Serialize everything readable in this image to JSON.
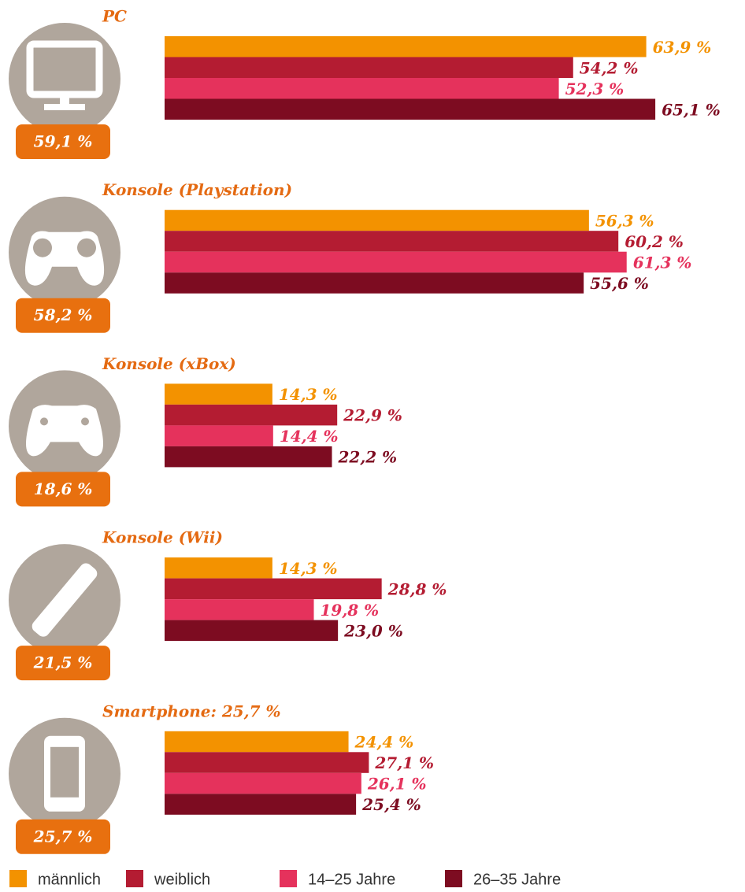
{
  "chart_data": {
    "type": "bar",
    "categories": [
      "PC",
      "Konsole (Playstation)",
      "Konsole (xBox)",
      "Konsole (Wii)",
      "Smartphone: 25,7 %"
    ],
    "totals": [
      59.1,
      58.2,
      18.6,
      21.5,
      25.7
    ],
    "total_labels": [
      "59,1 %",
      "58,2 %",
      "18,6 %",
      "21,5 %",
      "25,7 %"
    ],
    "total_color": "#e8700f",
    "xlim": [
      0,
      77
    ],
    "series": [
      {
        "name": "männlich",
        "color": "#f39200",
        "values": [
          63.9,
          56.3,
          14.3,
          14.3,
          24.4
        ],
        "value_labels": [
          "63,9 %",
          "56,3 %",
          "14,3 %",
          "14,3 %",
          "24,4 %"
        ]
      },
      {
        "name": "weiblich",
        "color": "#b41c32",
        "values": [
          54.2,
          60.2,
          22.9,
          28.8,
          27.1
        ],
        "value_labels": [
          "54,2 %",
          "60,2 %",
          "22,9 %",
          "28,8 %",
          "27,1 %"
        ]
      },
      {
        "name": "14–25 Jahre",
        "color": "#e5325c",
        "values": [
          52.3,
          61.3,
          14.4,
          19.8,
          26.1
        ],
        "value_labels": [
          "52,3 %",
          "61,3 %",
          "14,4 %",
          "19,8 %",
          "26,1 %"
        ]
      },
      {
        "name": "26–35 Jahre",
        "color": "#7d0c21",
        "values": [
          65.1,
          55.6,
          22.2,
          23.0,
          25.4
        ],
        "value_labels": [
          "65,1 %",
          "55,6 %",
          "22,2 %",
          "23,0 %",
          "25,4 %"
        ]
      }
    ]
  }
}
